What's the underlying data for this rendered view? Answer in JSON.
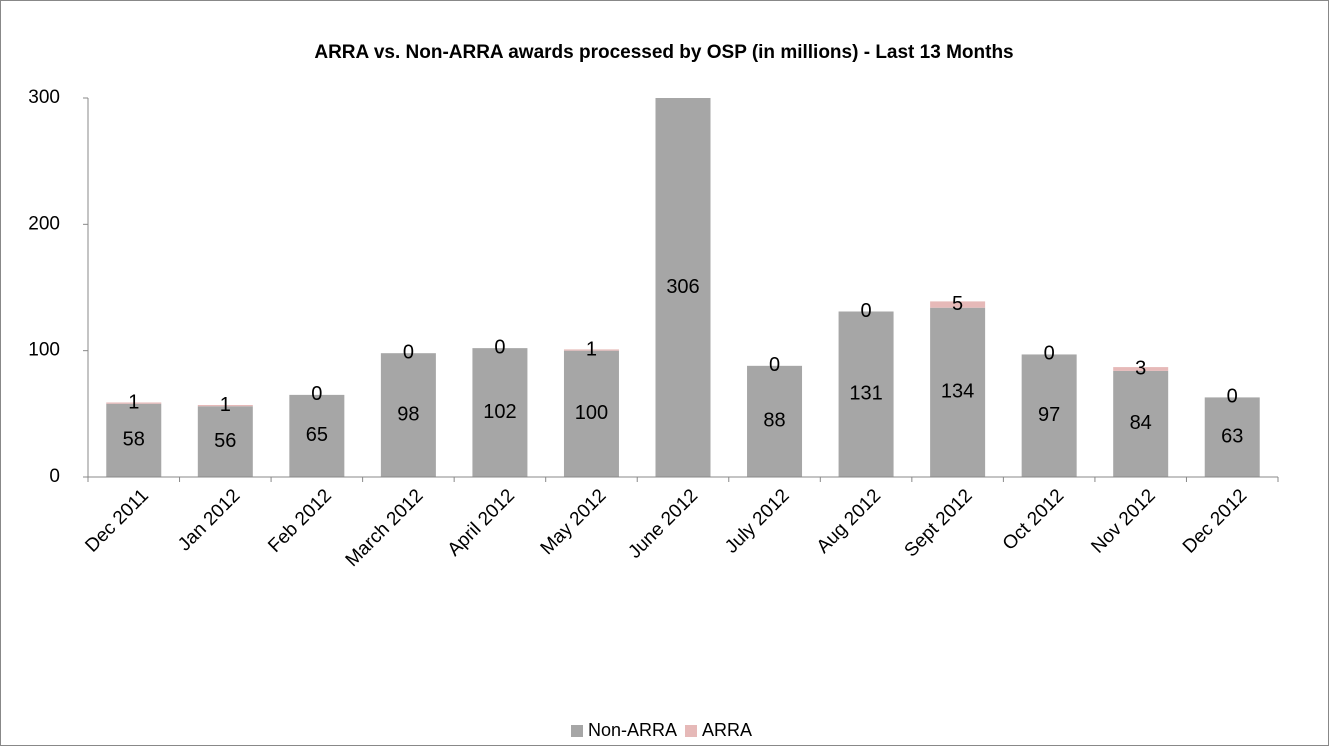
{
  "chart_data": {
    "type": "stacked_bar",
    "title": "ARRA vs. Non-ARRA awards processed by OSP (in millions) - Last 13 Months",
    "categories": [
      "Dec 2011",
      "Jan 2012",
      "Feb 2012",
      "March 2012",
      "April 2012",
      "May 2012",
      "June 2012",
      "July 2012",
      "Aug 2012",
      "Sept 2012",
      "Oct 2012",
      "Nov 2012",
      "Dec 2012"
    ],
    "series": [
      {
        "name": "Non-ARRA",
        "color": "#a6a6a6",
        "values": [
          58,
          56,
          65,
          98,
          102,
          100,
          306,
          88,
          131,
          134,
          97,
          84,
          63
        ]
      },
      {
        "name": "ARRA",
        "color": "#e6b9b8",
        "values": [
          1,
          1,
          0,
          0,
          0,
          1,
          null,
          0,
          0,
          5,
          0,
          3,
          0
        ]
      }
    ],
    "ylim": [
      0,
      300
    ],
    "yticks": [
      0,
      100,
      200,
      300
    ],
    "grid": false,
    "legend": "bottom"
  }
}
